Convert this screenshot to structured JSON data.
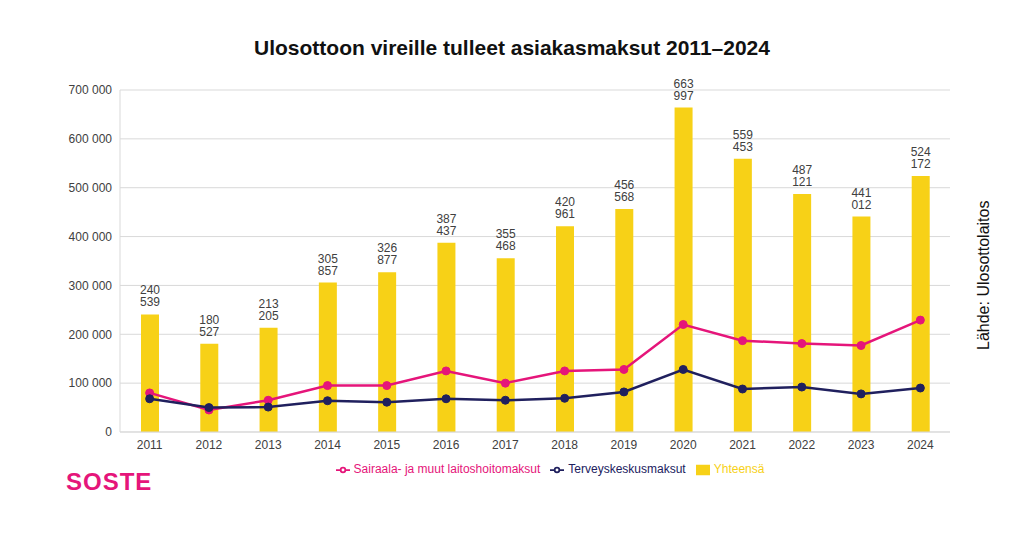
{
  "chart_data": {
    "type": "bar",
    "title": "Ulosottoon vireille tulleet asiakasmaksut 2011–2024",
    "source": "Lähde: Ulosottolaitos",
    "logo": "SOSTE",
    "categories": [
      "2011",
      "2012",
      "2013",
      "2014",
      "2015",
      "2016",
      "2017",
      "2018",
      "2019",
      "2020",
      "2021",
      "2022",
      "2023",
      "2024"
    ],
    "series": [
      {
        "name": "Yhteensä",
        "type": "bar",
        "color": "#f7d117",
        "data_labels": true,
        "values": [
          240539,
          180527,
          213205,
          305857,
          326877,
          387437,
          355468,
          420961,
          456568,
          663997,
          559453,
          487121,
          441012,
          524172
        ],
        "value_labels": [
          "240 539",
          "180 527",
          "213 205",
          "305 857",
          "326 877",
          "387 437",
          "355 468",
          "420 961",
          "456 568",
          "663 997",
          "559 453",
          "487 121",
          "441 012",
          "524 172"
        ]
      },
      {
        "name": "Sairaala- ja muut laitoshoitomaksut",
        "type": "line",
        "color": "#e5157a",
        "marker": "circle",
        "values": [
          80000,
          45000,
          65000,
          95000,
          95000,
          125000,
          100000,
          125000,
          128000,
          220000,
          187000,
          181000,
          177000,
          229000
        ]
      },
      {
        "name": "Terveyskeskusmaksut",
        "type": "line",
        "color": "#20205e",
        "marker": "circle",
        "values": [
          68000,
          50000,
          51000,
          64000,
          61000,
          68000,
          65000,
          69000,
          82000,
          128000,
          88000,
          92000,
          78000,
          90000
        ]
      }
    ],
    "ylim": [
      0,
      700000
    ],
    "yticks": [
      0,
      {
        "value": 100000,
        "label": "100 000"
      },
      {
        "value": 200000,
        "label": "200 000"
      },
      {
        "value": 300000,
        "label": "300 000"
      },
      {
        "value": 400000,
        "label": "400 000"
      },
      {
        "value": 500000,
        "label": "500 000"
      },
      {
        "value": 600000,
        "label": "600 000"
      },
      {
        "value": 700000,
        "label": "700 000"
      }
    ],
    "grid": true,
    "legend": "bottom"
  }
}
